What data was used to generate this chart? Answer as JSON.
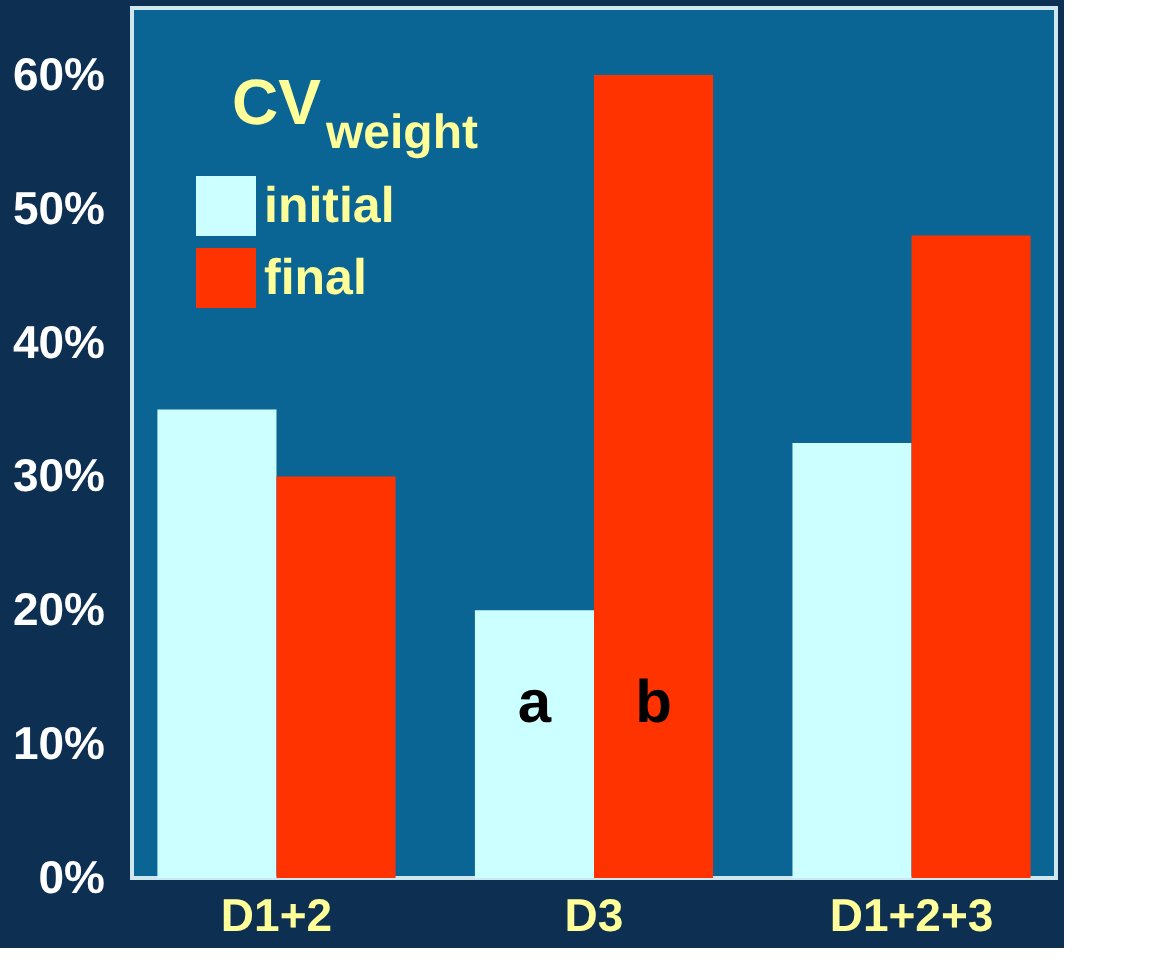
{
  "chart_data": {
    "type": "bar",
    "legend_title": "CV$_{weight}$",
    "categories": [
      "D1+2",
      "D3",
      "D1+2+3"
    ],
    "series": [
      {
        "name": "initial",
        "color": "#ccffff",
        "values": [
          35,
          20,
          32.5
        ]
      },
      {
        "name": "final",
        "color": "#ff3300",
        "values": [
          30,
          60,
          48
        ]
      }
    ],
    "ylim": [
      0,
      65
    ],
    "yticks": [
      {
        "value": 0,
        "label": "0%"
      },
      {
        "value": 10,
        "label": "10%"
      },
      {
        "value": 20,
        "label": "20%"
      },
      {
        "value": 30,
        "label": "30%"
      },
      {
        "value": 40,
        "label": "40%"
      },
      {
        "value": 50,
        "label": "50%"
      },
      {
        "value": 60,
        "label": "60%"
      }
    ],
    "annotations": [
      {
        "text": "a",
        "x": "D3",
        "y": 13
      },
      {
        "text": "b",
        "x": "D3",
        "y": 13
      }
    ],
    "grid": false,
    "legend": "top left"
  }
}
